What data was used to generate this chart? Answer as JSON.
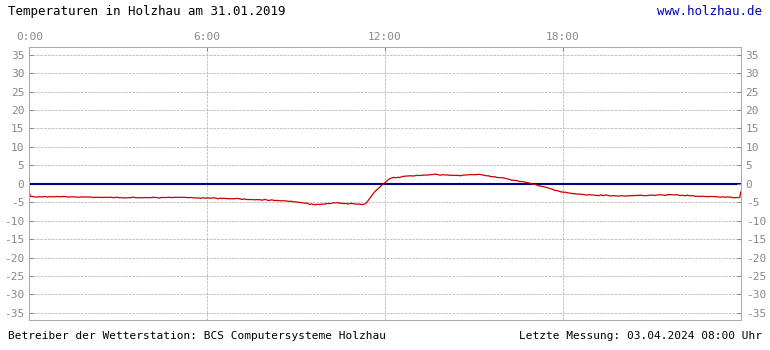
{
  "title": "Temperaturen in Holzhau am 31.01.2019",
  "title_color": "#000000",
  "url_text": "www.holzhau.de",
  "url_color": "#0000bb",
  "footer_left": "Betreiber der Wetterstation: BCS Computersysteme Holzhau",
  "footer_right": "Letzte Messung: 03.04.2024 08:00 Uhr",
  "footer_color": "#000000",
  "bg_color": "#ffffff",
  "plot_bg_color": "#ffffff",
  "grid_color": "#aaaaaa",
  "zero_line_color": "#00008b",
  "temp_line_color": "#cc0000",
  "xlim": [
    0,
    1440
  ],
  "ylim": [
    -37,
    37
  ],
  "yticks": [
    -35,
    -30,
    -25,
    -20,
    -15,
    -10,
    -5,
    0,
    5,
    10,
    15,
    20,
    25,
    30,
    35
  ],
  "xticks": [
    0,
    360,
    720,
    1080,
    1440
  ],
  "xtick_labels": [
    "0:00",
    "6:00",
    "12:00",
    "18:00",
    ""
  ],
  "xlabel": "",
  "ylabel": "",
  "tick_color": "#888888",
  "tick_label_color": "#888888",
  "tick_fontsize": 8
}
